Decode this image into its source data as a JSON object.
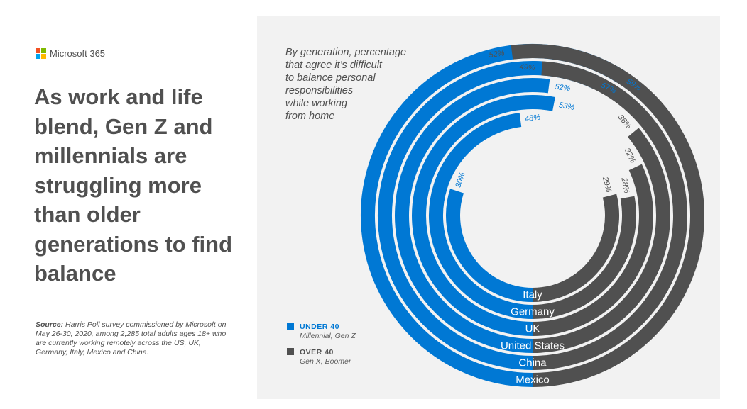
{
  "brand": {
    "logo_colors": [
      "#f25022",
      "#7fba00",
      "#00a4ef",
      "#ffb900"
    ],
    "name": "Microsoft 365"
  },
  "headline": "As work and life blend, Gen Z and millennials are struggling more than older generations to find balance",
  "source": {
    "label": "Source:",
    "text": " Harris Poll survey commissioned by Microsoft on May 26-30, 2020, among 2,285 total adults ages 18+ who are currently working remotely across the US, UK, Germany, Italy, Mexico and China."
  },
  "chart_data": {
    "type": "radial-bar",
    "title": "By generation, percentage that agree it’s difficult to balance personal responsibilities while working from home",
    "title_lines": [
      "By generation, percentage",
      "that agree it’s difficult",
      "to balance personal",
      "responsibilities",
      "while working",
      "from home"
    ],
    "categories": [
      "Italy",
      "Germany",
      "UK",
      "United States",
      "China",
      "Mexico"
    ],
    "series": [
      {
        "name": "UNDER 40",
        "subtitle": "Millennial, Gen Z",
        "color": "#0078d4",
        "values": [
          30,
          48,
          53,
          52,
          57,
          59
        ]
      },
      {
        "name": "OVER 40",
        "subtitle": "Gen X, Boomer",
        "color": "#505050",
        "values": [
          29,
          28,
          32,
          36,
          49,
          52
        ]
      }
    ],
    "value_labels": {
      "under": [
        "30%",
        "48%",
        "53%",
        "52%",
        "57%",
        "59%"
      ],
      "over": [
        "29%",
        "28%",
        "32%",
        "36%",
        "49%",
        "52%"
      ]
    },
    "legend": {
      "placement": "bottom-left",
      "items": [
        {
          "label": "UNDER 40",
          "sub": "Millennial, Gen Z",
          "color": "#0078d4"
        },
        {
          "label": "OVER 40",
          "sub": "Gen X, Boomer",
          "color": "#505050"
        }
      ]
    }
  }
}
